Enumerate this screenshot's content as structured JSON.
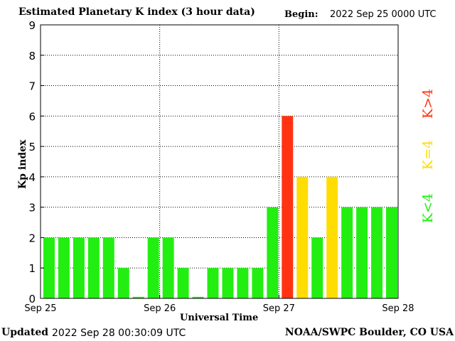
{
  "header": {
    "title": "Estimated Planetary K index (3 hour data)",
    "begin_label": "Begin:",
    "begin_value": "2022 Sep 25 0000 UTC"
  },
  "footer": {
    "updated_label": "Updated",
    "updated_value": "2022 Sep 28 00:30:09 UTC",
    "credit": "NOAA/SWPC Boulder, CO USA"
  },
  "legend": {
    "items": [
      {
        "label": "K<4",
        "color": "#22ee11"
      },
      {
        "label": "K=4",
        "color": "#ffdd00"
      },
      {
        "label": "K>4",
        "color": "#ff3311"
      }
    ]
  },
  "chart_data": {
    "type": "bar",
    "title": "Estimated Planetary K index (3 hour data)",
    "xlabel": "Universal Time",
    "ylabel": "Kp index",
    "ylim": [
      0,
      9
    ],
    "yticks": [
      "0",
      "1",
      "2",
      "3",
      "4",
      "5",
      "6",
      "7",
      "8",
      "9"
    ],
    "xticks": [
      "Sep 25",
      "Sep 26",
      "Sep 27",
      "Sep 28"
    ],
    "grid": true,
    "legend_position": "right",
    "interval_hours": 3,
    "values": [
      2,
      2,
      2,
      2,
      2,
      1,
      0.05,
      2,
      2,
      1,
      0.05,
      1,
      1,
      1,
      1,
      3,
      6,
      4,
      2,
      4,
      3,
      3,
      3,
      3
    ],
    "colors": {
      "below": "#22ee11",
      "equal": "#ffdd00",
      "above": "#ff3311"
    }
  }
}
